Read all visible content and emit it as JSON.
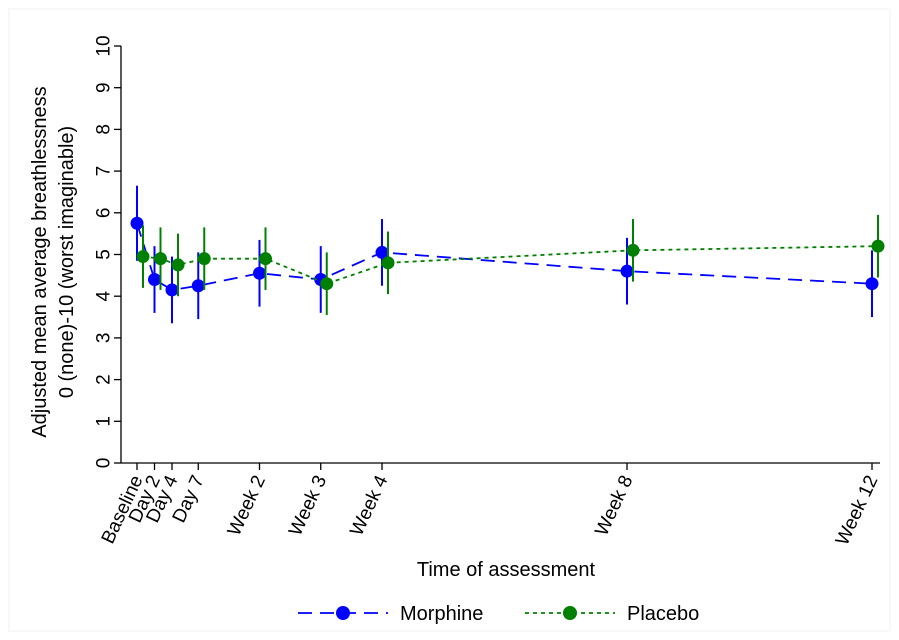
{
  "chart_data": {
    "type": "line",
    "title": "",
    "xlabel": "Time of assessment",
    "ylabel_lines": [
      "Adjusted mean average breathlessness",
      "0 (none)-10 (worst imaginable)"
    ],
    "ylim": [
      0,
      10
    ],
    "yticks": [
      0,
      1,
      2,
      3,
      4,
      5,
      6,
      7,
      8,
      9,
      10
    ],
    "x_ticks": [
      {
        "label": "Baseline",
        "day": 0
      },
      {
        "label": "Day 2",
        "day": 2
      },
      {
        "label": "Day 4",
        "day": 4
      },
      {
        "label": "Day 7",
        "day": 7
      },
      {
        "label": "Week 2",
        "day": 14
      },
      {
        "label": "Week 3",
        "day": 21
      },
      {
        "label": "Week 4",
        "day": 28
      },
      {
        "label": "Week 8",
        "day": 56
      },
      {
        "label": "Week 12",
        "day": 84
      }
    ],
    "grid": false,
    "legend_position": "bottom",
    "series": [
      {
        "name": "Morphine",
        "color": "#0000ff",
        "line_style": "dashed",
        "points": [
          {
            "day": 0,
            "value": 5.75,
            "lower": 4.85,
            "upper": 6.65
          },
          {
            "day": 2,
            "value": 4.4,
            "lower": 3.6,
            "upper": 5.2
          },
          {
            "day": 4,
            "value": 4.15,
            "lower": 3.35,
            "upper": 4.95
          },
          {
            "day": 7,
            "value": 4.25,
            "lower": 3.45,
            "upper": 5.05
          },
          {
            "day": 14,
            "value": 4.55,
            "lower": 3.75,
            "upper": 5.35
          },
          {
            "day": 21,
            "value": 4.4,
            "lower": 3.6,
            "upper": 5.2
          },
          {
            "day": 28,
            "value": 5.05,
            "lower": 4.25,
            "upper": 5.85
          },
          {
            "day": 56,
            "value": 4.6,
            "lower": 3.8,
            "upper": 5.4
          },
          {
            "day": 84,
            "value": 4.3,
            "lower": 3.5,
            "upper": 5.1
          }
        ]
      },
      {
        "name": "Placebo",
        "color": "#008000",
        "line_style": "dotted",
        "points": [
          {
            "day": 0,
            "value": 4.95,
            "lower": 4.2,
            "upper": 5.7
          },
          {
            "day": 2,
            "value": 4.9,
            "lower": 4.15,
            "upper": 5.65
          },
          {
            "day": 4,
            "value": 4.75,
            "lower": 4.0,
            "upper": 5.5
          },
          {
            "day": 7,
            "value": 4.9,
            "lower": 4.15,
            "upper": 5.65
          },
          {
            "day": 14,
            "value": 4.9,
            "lower": 4.15,
            "upper": 5.65
          },
          {
            "day": 21,
            "value": 4.3,
            "lower": 3.55,
            "upper": 5.05
          },
          {
            "day": 28,
            "value": 4.8,
            "lower": 4.05,
            "upper": 5.55
          },
          {
            "day": 56,
            "value": 5.1,
            "lower": 4.35,
            "upper": 5.85
          },
          {
            "day": 84,
            "value": 5.2,
            "lower": 4.45,
            "upper": 5.95
          }
        ]
      }
    ]
  }
}
